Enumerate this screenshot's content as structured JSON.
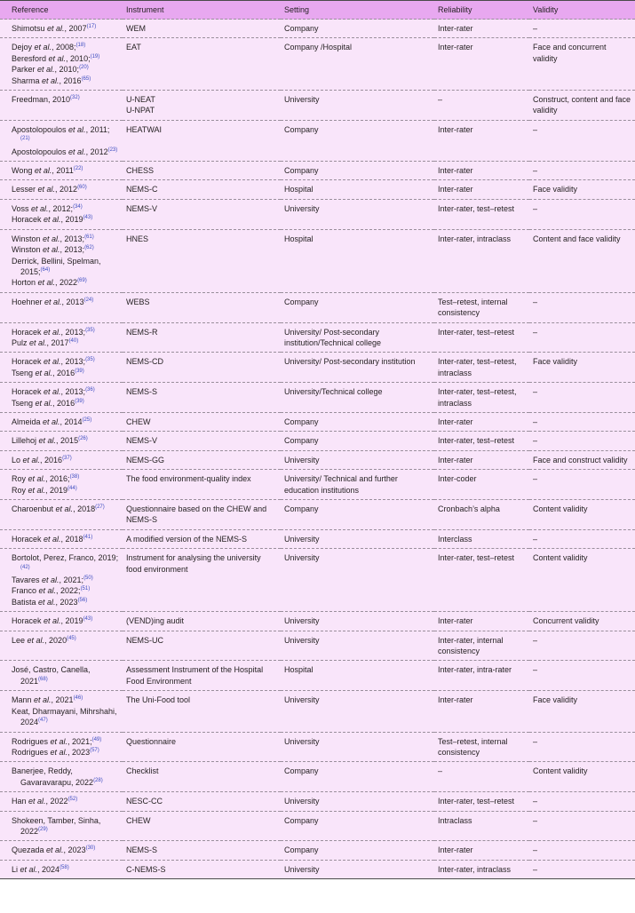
{
  "headers": [
    "Reference",
    "Instrument",
    "Setting",
    "Reliability",
    "Validity"
  ],
  "rows": [
    {
      "refs": [
        [
          "Shimotsu",
          " et al.",
          ", 2007",
          "(17)"
        ]
      ],
      "instrument": [
        "WEM"
      ],
      "setting": "Company",
      "reliability": "Inter-rater",
      "validity": "–"
    },
    {
      "refs": [
        [
          "Dejoy",
          " et al.",
          ", 2008;",
          "(18)"
        ],
        [
          "Beresford",
          " et al.",
          ", 2010;",
          "(19)"
        ],
        [
          "Parker",
          " et al.",
          ", 2010;",
          "(20)"
        ],
        [
          "Sharma",
          " et al.",
          ", 2016",
          "(65)"
        ]
      ],
      "instrument": [
        "EAT"
      ],
      "setting": "Company /Hospital",
      "reliability": "Inter-rater",
      "validity": "Face and concurrent validity"
    },
    {
      "refs": [
        [
          "Freedman, 2010",
          "",
          "",
          "(32)"
        ]
      ],
      "instrument": [
        "U-NEAT",
        "U-NPAT"
      ],
      "setting": "University",
      "reliability": "–",
      "validity": "Construct, content and face validity"
    },
    {
      "refs": [
        [
          "Apostolopoulos",
          " et al.",
          ", 2011;",
          "(21)"
        ],
        [
          "Apostolopoulos",
          " et al.",
          ", 2012",
          "(23)"
        ]
      ],
      "instrument": [
        "HEATWAI"
      ],
      "setting": "Company",
      "reliability": "Inter-rater",
      "validity": "–"
    },
    {
      "refs": [
        [
          "Wong",
          " et al.",
          ", 2011",
          "(22)"
        ]
      ],
      "instrument": [
        "CHESS"
      ],
      "setting": "Company",
      "reliability": "Inter-rater",
      "validity": "–"
    },
    {
      "refs": [
        [
          "Lesser",
          " et al.",
          ", 2012",
          "(60)"
        ]
      ],
      "instrument": [
        "NEMS-C"
      ],
      "setting": "Hospital",
      "reliability": "Inter-rater",
      "validity": "Face validity"
    },
    {
      "refs": [
        [
          "Voss",
          " et al.",
          ", 2012;",
          "(34)"
        ],
        [
          "Horacek",
          " et al.",
          ", 2019",
          "(43)"
        ]
      ],
      "instrument": [
        "NEMS-V"
      ],
      "setting": "University",
      "reliability": "Inter-rater, test–retest",
      "validity": "–"
    },
    {
      "refs": [
        [
          "Winston",
          " et al.",
          ", 2013;",
          "(61)"
        ],
        [
          "Winston",
          " et al.",
          ", 2013;",
          "(62)"
        ],
        [
          "Derrick, Bellini, Spelman, 2015;",
          "",
          "",
          "(64)"
        ],
        [
          "Horton",
          " et al.",
          ", 2022",
          "(69)"
        ]
      ],
      "instrument": [
        "HNES"
      ],
      "setting": "Hospital",
      "reliability": "Inter-rater, intraclass",
      "validity": "Content and face validity"
    },
    {
      "refs": [
        [
          "Hoehner",
          " et al.",
          ", 2013",
          "(24)"
        ]
      ],
      "instrument": [
        "WEBS"
      ],
      "setting": "Company",
      "reliability": "Test–retest, internal consistency",
      "validity": "–"
    },
    {
      "refs": [
        [
          "Horacek",
          " et al.",
          ", 2013;",
          "(35)"
        ],
        [
          "Pulz",
          " et al.",
          ", 2017",
          "(40)"
        ]
      ],
      "instrument": [
        "NEMS-R"
      ],
      "setting": "University/ Post-secondary institution/Technical college",
      "reliability": "Inter-rater, test–retest",
      "validity": "–"
    },
    {
      "refs": [
        [
          "Horacek",
          " et al.",
          ", 2013;",
          "(35)"
        ],
        [
          "Tseng",
          " et al.",
          ", 2016",
          "(39)"
        ]
      ],
      "instrument": [
        "NEMS-CD"
      ],
      "setting": "University/ Post-secondary institution",
      "reliability": "Inter-rater, test–retest, intraclass",
      "validity": "Face validity"
    },
    {
      "refs": [
        [
          "Horacek",
          " et al.",
          ", 2013;",
          "(36)"
        ],
        [
          "Tseng",
          " et al.",
          ", 2016",
          "(39)"
        ]
      ],
      "instrument": [
        "NEMS-S"
      ],
      "setting": "University/Technical college",
      "reliability": "Inter-rater, test–retest, intraclass",
      "validity": "–"
    },
    {
      "refs": [
        [
          "Almeida",
          " et al.",
          ", 2014",
          "(25)"
        ]
      ],
      "instrument": [
        "CHEW"
      ],
      "setting": "Company",
      "reliability": "Inter-rater",
      "validity": "–"
    },
    {
      "refs": [
        [
          "Lillehoj",
          " et al.",
          ", 2015",
          "(26)"
        ]
      ],
      "instrument": [
        "NEMS-V"
      ],
      "setting": "Company",
      "reliability": "Inter-rater, test–retest",
      "validity": "–"
    },
    {
      "refs": [
        [
          "Lo",
          " et al.",
          ", 2016",
          "(37)"
        ]
      ],
      "instrument": [
        "NEMS-GG"
      ],
      "setting": "University",
      "reliability": "Inter-rater",
      "validity": "Face and construct validity"
    },
    {
      "refs": [
        [
          "Roy",
          " et al.",
          ", 2016;",
          "(38)"
        ],
        [
          "Roy",
          " et al.",
          ", 2019",
          "(44)"
        ]
      ],
      "instrument": [
        "The food environment-quality index"
      ],
      "setting": "University/ Technical and further education institutions",
      "reliability": "Inter-coder",
      "validity": "–"
    },
    {
      "refs": [
        [
          "Charoenbut",
          " et al.",
          ", 2018",
          "(27)"
        ]
      ],
      "instrument": [
        "Questionnaire based on the CHEW and NEMS-S"
      ],
      "setting": "Company",
      "reliability": "Cronbach’s alpha",
      "validity": "Content validity"
    },
    {
      "refs": [
        [
          "Horacek",
          " et al.",
          ", 2018",
          "(41)"
        ]
      ],
      "instrument": [
        "A modified version of the NEMS-S"
      ],
      "setting": "University",
      "reliability": "Interclass",
      "validity": "–"
    },
    {
      "refs": [
        [
          "Bortolot, Perez, Franco, 2019;",
          "",
          "",
          "(42)"
        ],
        [
          "Tavares",
          " et al.",
          ", 2021;",
          "(50)"
        ],
        [
          "Franco",
          " et al.",
          ", 2022;",
          "(51)"
        ],
        [
          "Batista",
          " et al.",
          ", 2023",
          "(56)"
        ]
      ],
      "instrument": [
        "Instrument for analysing the university food environment"
      ],
      "setting": "University",
      "reliability": "Inter-rater, test–retest",
      "validity": "Content validity"
    },
    {
      "refs": [
        [
          "Horacek",
          " et al.",
          ", 2019",
          "(43)"
        ]
      ],
      "instrument": [
        "(VEND)ing audit"
      ],
      "setting": "University",
      "reliability": "Inter-rater",
      "validity": "Concurrent validity"
    },
    {
      "refs": [
        [
          "Lee",
          " et al.",
          ", 2020",
          "(45)"
        ]
      ],
      "instrument": [
        "NEMS-UC"
      ],
      "setting": "University",
      "reliability": "Inter-rater, internal consistency",
      "validity": "–"
    },
    {
      "refs": [
        [
          "José, Castro, Canella, 2021",
          "",
          "",
          "(68)"
        ]
      ],
      "instrument": [
        "Assessment Instrument of the Hospital Food Environment"
      ],
      "setting": "Hospital",
      "reliability": "Inter-rater, intra-rater",
      "validity": "–"
    },
    {
      "refs": [
        [
          "Mann",
          " et al.",
          ", 2021",
          "(46)"
        ],
        [
          "Keat, Dharmayani, Mihrshahi, 2024",
          "",
          "",
          "(47)"
        ]
      ],
      "instrument": [
        "The Uni-Food tool"
      ],
      "setting": "University",
      "reliability": "Inter-rater",
      "validity": "Face validity"
    },
    {
      "refs": [
        [
          "Rodrigues",
          " et al.",
          ", 2021;",
          "(49)"
        ],
        [
          "Rodrigues",
          " et al.",
          ", 2023",
          "(57)"
        ]
      ],
      "instrument": [
        "Questionnaire"
      ],
      "setting": "University",
      "reliability": "Test–retest, internal consistency",
      "validity": "–"
    },
    {
      "refs": [
        [
          "Banerjee, Reddy, Gavaravarapu, 2022",
          "",
          "",
          "(28)"
        ]
      ],
      "instrument": [
        "Checklist"
      ],
      "setting": "Company",
      "reliability": "–",
      "validity": "Content validity"
    },
    {
      "refs": [
        [
          "Han",
          " et al.",
          ", 2022",
          "(52)"
        ]
      ],
      "instrument": [
        "NESC-CC"
      ],
      "setting": "University",
      "reliability": "Inter-rater, test–retest",
      "validity": "–"
    },
    {
      "refs": [
        [
          "Shokeen, Tamber, Sinha, 2022",
          "",
          "",
          "(29)"
        ]
      ],
      "instrument": [
        "CHEW"
      ],
      "setting": "Company",
      "reliability": "Intraclass",
      "validity": "–"
    },
    {
      "refs": [
        [
          "Quezada",
          " et al.",
          ", 2023",
          "(30)"
        ]
      ],
      "instrument": [
        "NEMS-S"
      ],
      "setting": "Company",
      "reliability": "Inter-rater",
      "validity": "–"
    },
    {
      "refs": [
        [
          "Li",
          " et al.",
          ", 2024",
          "(58)"
        ]
      ],
      "instrument": [
        "C-NEMS-S"
      ],
      "setting": "University",
      "reliability": "Inter-rater, intraclass",
      "validity": "–"
    }
  ]
}
